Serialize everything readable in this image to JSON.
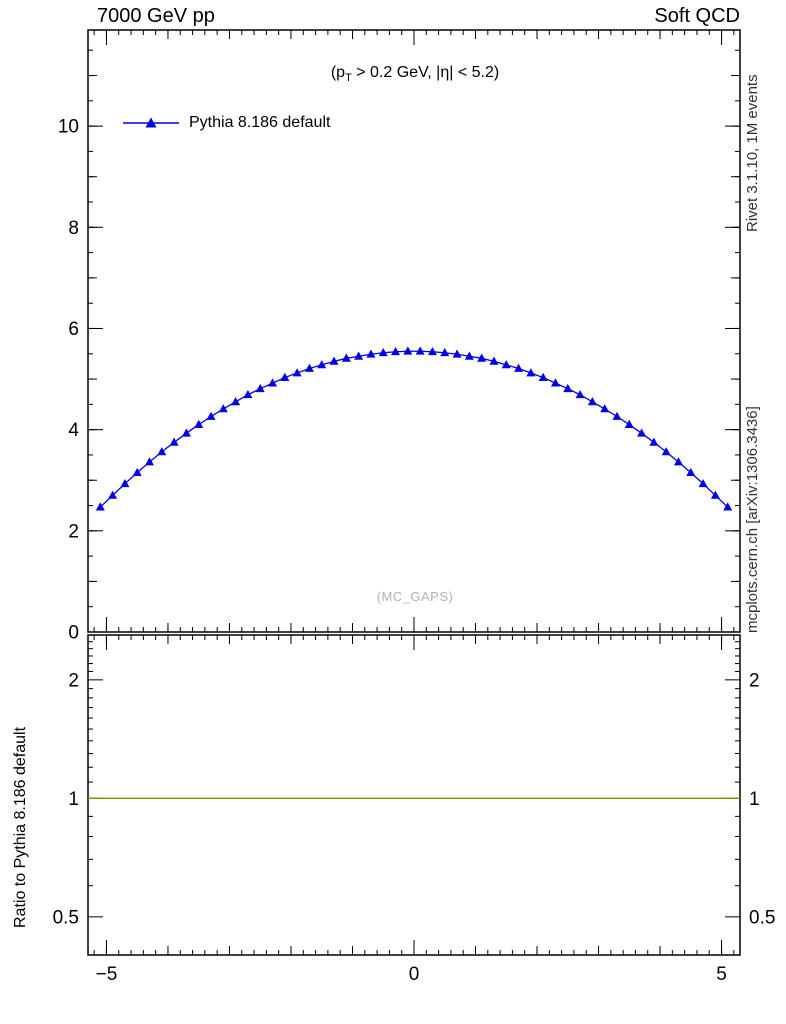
{
  "header": {
    "left": "7000 GeV pp",
    "right": "Soft QCD"
  },
  "annotation": {
    "prefix": "(p",
    "sub": "T",
    "suffix": " > 0.2 GeV, |η| < 5.2)"
  },
  "legend": {
    "items": [
      {
        "label": "Pythia 8.186 default",
        "color": "#0000e6",
        "marker": "triangle-up"
      }
    ]
  },
  "watermark": "(MC_GAPS)",
  "side_labels": {
    "top_right": "Rivet 3.1.10, 1M events",
    "bottom_right": "mcplots.cern.ch [arXiv:1306.3436]"
  },
  "ratio": {
    "ylabel": "Ratio to Pythia 8.186 default"
  },
  "chart_data": {
    "type": "line",
    "title": "",
    "xlabel": "",
    "ylabel": "",
    "legend_position": "top-left-inside",
    "grid": false,
    "main_panel": {
      "xlim": [
        -5.3,
        5.3
      ],
      "ylim": [
        0,
        11.9
      ],
      "x_major_ticks": [
        -5,
        0,
        5
      ],
      "x_tick_labels": [
        "−5",
        "0",
        "5"
      ],
      "x_minor_step": 0.2,
      "y_major_ticks": [
        0,
        2,
        4,
        6,
        8,
        10
      ],
      "y_tick_labels": [
        "0",
        "2",
        "4",
        "6",
        "8",
        "10"
      ],
      "y_minor_step": 0.5
    },
    "ratio_panel": {
      "scale": "log",
      "ylim": [
        0.4,
        2.6
      ],
      "y_major_ticks": [
        0.5,
        1,
        2
      ],
      "y_tick_labels": [
        "0.5",
        "1",
        "2"
      ],
      "y_minor_ticks": [
        0.4,
        0.6,
        0.7,
        0.8,
        0.9,
        1.1,
        1.2,
        1.3,
        1.4,
        1.5,
        1.6,
        1.7,
        1.8,
        1.9,
        2.1,
        2.2,
        2.3,
        2.4,
        2.5
      ]
    },
    "ratio_reference": {
      "value": 1,
      "color": "#8a8a00",
      "name": "Pythia 8.186 default"
    },
    "series": [
      {
        "name": "Pythia 8.186 default",
        "color": "#0000e6",
        "marker": "triangle-up",
        "x": [
          -5.1,
          -4.9,
          -4.7,
          -4.5,
          -4.3,
          -4.1,
          -3.9,
          -3.7,
          -3.5,
          -3.3,
          -3.1,
          -2.9,
          -2.7,
          -2.5,
          -2.3,
          -2.1,
          -1.9,
          -1.7,
          -1.5,
          -1.3,
          -1.1,
          -0.9,
          -0.7,
          -0.5,
          -0.3,
          -0.1,
          0.1,
          0.3,
          0.5,
          0.7,
          0.9,
          1.1,
          1.3,
          1.5,
          1.7,
          1.9,
          2.1,
          2.3,
          2.5,
          2.7,
          2.9,
          3.1,
          3.3,
          3.5,
          3.7,
          3.9,
          4.1,
          4.3,
          4.5,
          4.7,
          4.9,
          5.1
        ],
        "y": [
          2.47,
          2.7,
          2.93,
          3.15,
          3.36,
          3.56,
          3.75,
          3.93,
          4.1,
          4.26,
          4.41,
          4.55,
          4.69,
          4.81,
          4.92,
          5.03,
          5.12,
          5.21,
          5.28,
          5.35,
          5.41,
          5.45,
          5.49,
          5.52,
          5.54,
          5.55,
          5.55,
          5.54,
          5.52,
          5.49,
          5.45,
          5.41,
          5.35,
          5.28,
          5.21,
          5.12,
          5.03,
          4.92,
          4.81,
          4.69,
          4.55,
          4.41,
          4.26,
          4.1,
          3.93,
          3.75,
          3.56,
          3.36,
          3.15,
          2.93,
          2.7,
          2.47
        ]
      }
    ]
  }
}
